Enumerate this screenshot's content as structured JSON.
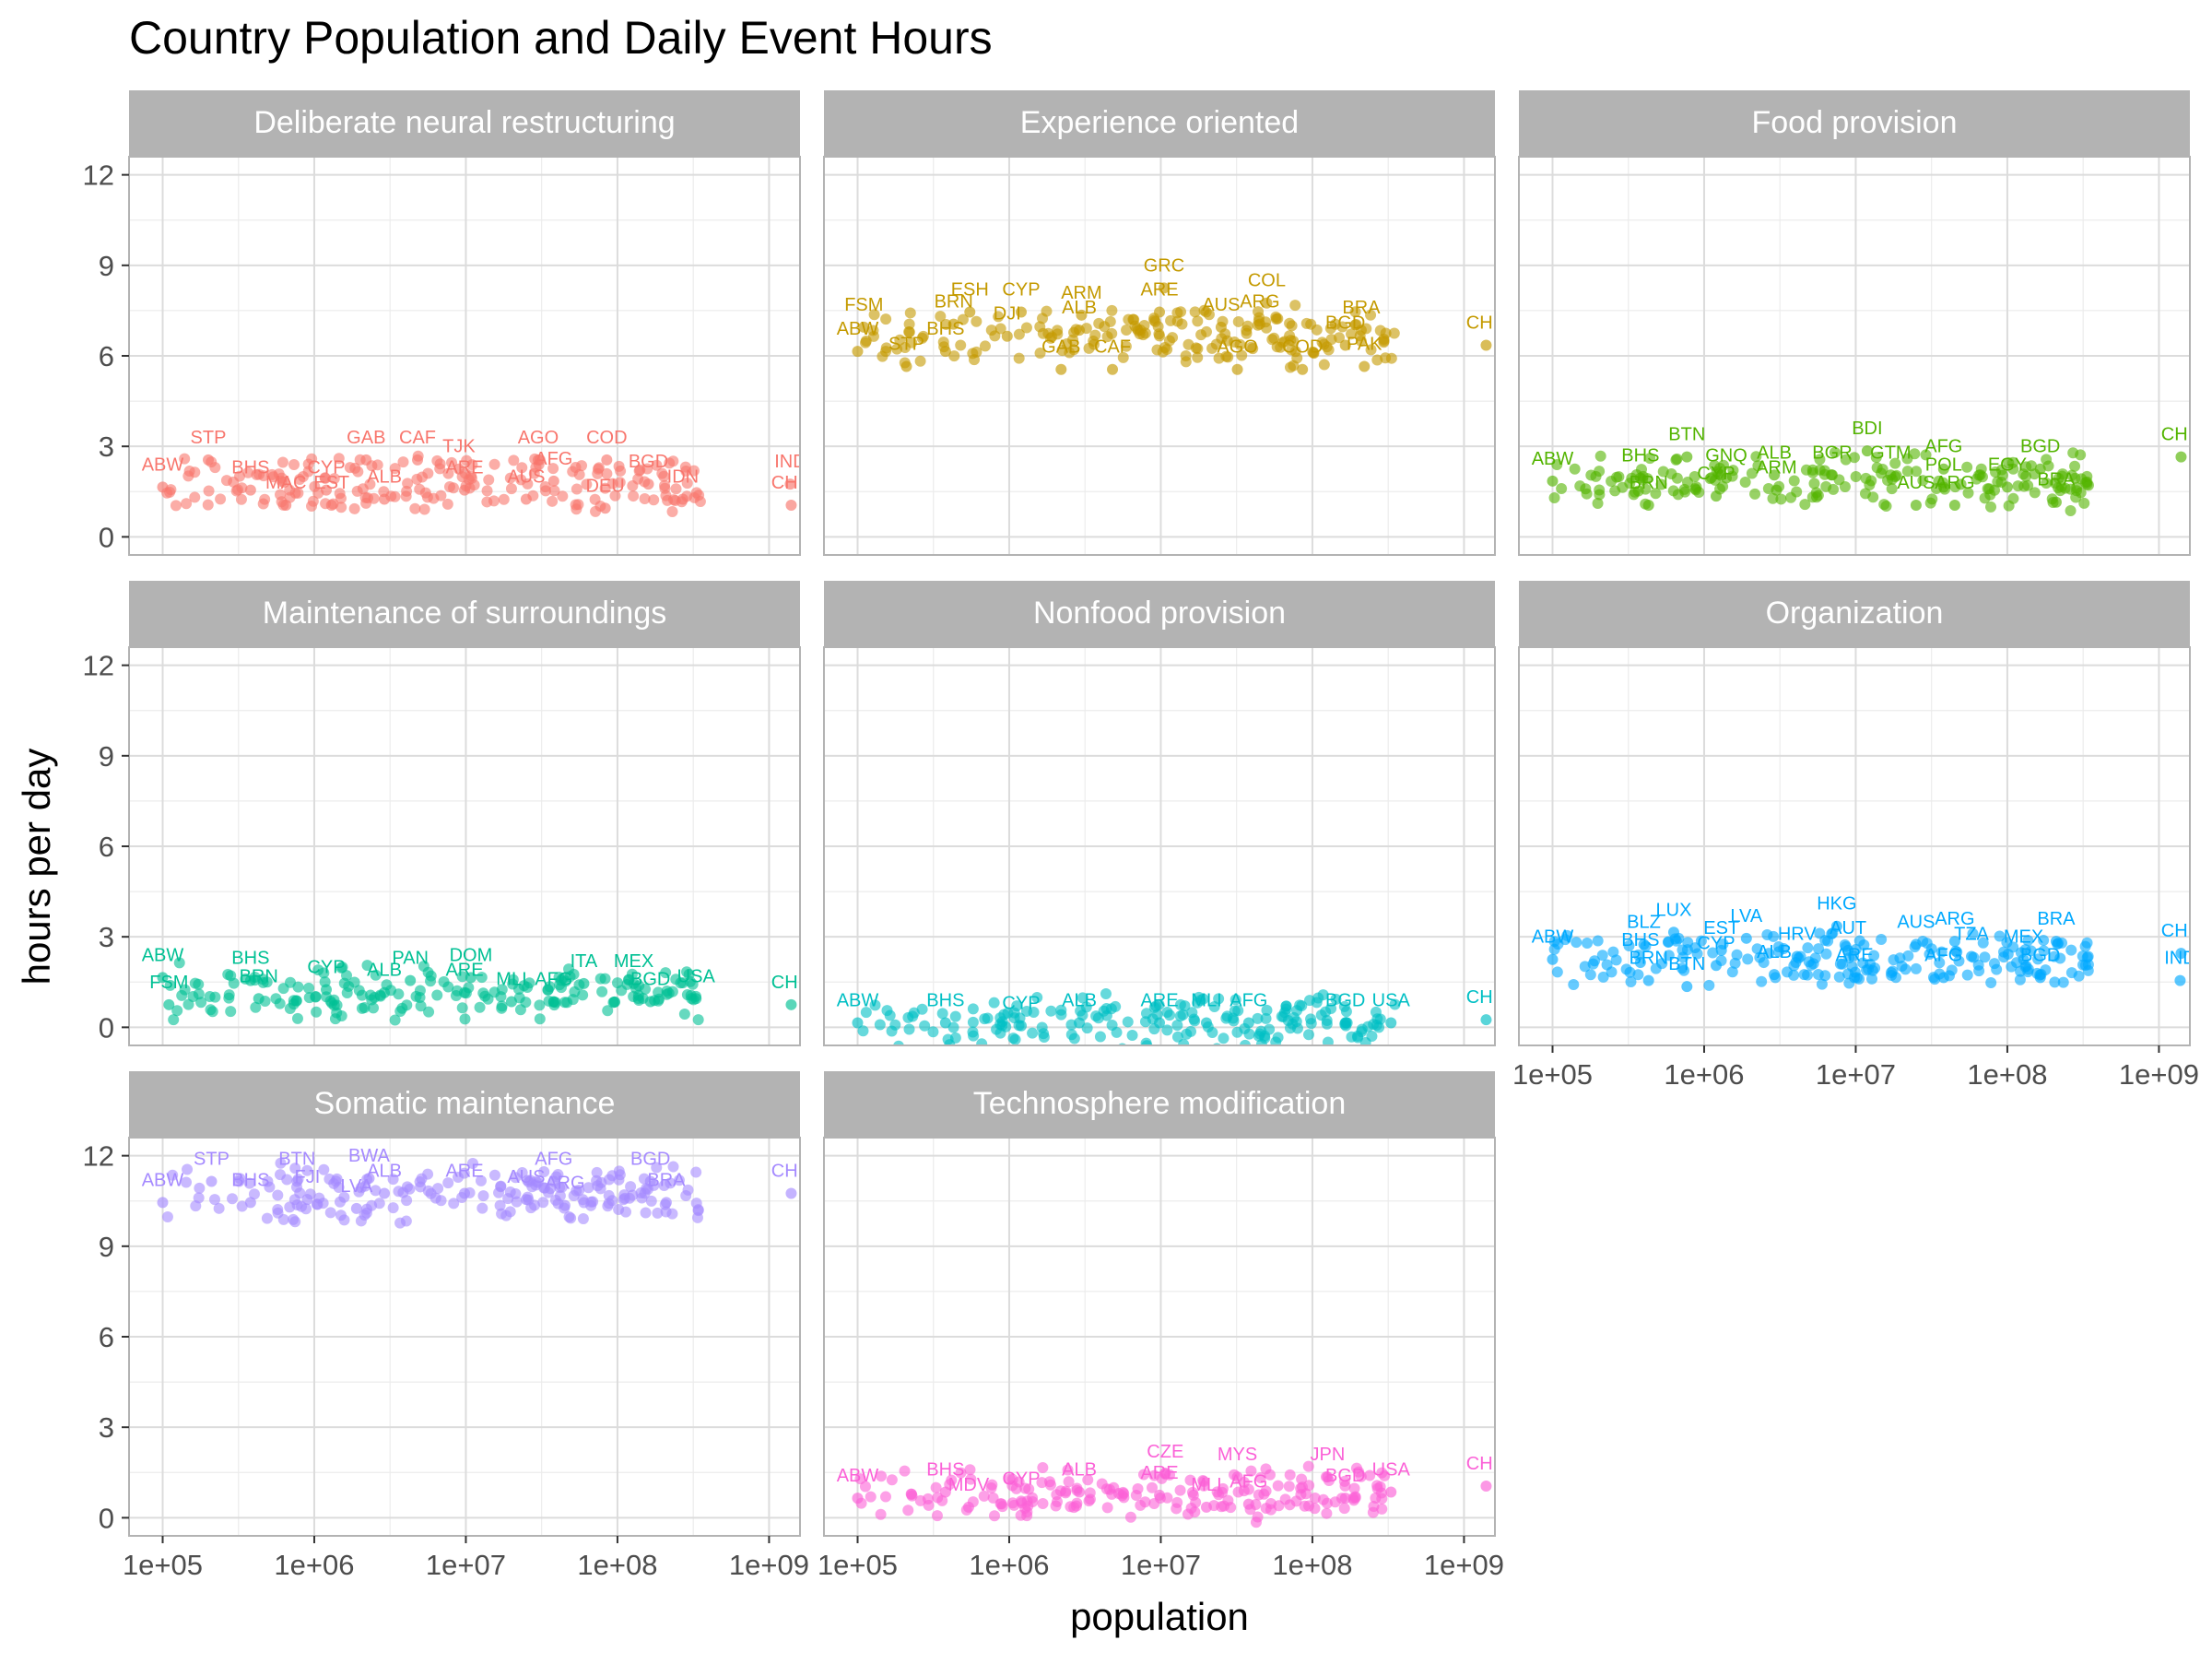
{
  "chart_data": {
    "type": "scatter",
    "title": "Country Population and Daily Event Hours",
    "xlabel": "population",
    "ylabel": "hours per day",
    "x_scale": "log10",
    "xlim": [
      60000,
      1600000000
    ],
    "x_ticks": [
      "1e+05",
      "1e+06",
      "1e+07",
      "1e+08",
      "1e+09"
    ],
    "ylim": [
      -0.6,
      12.6
    ],
    "y_ticks": [
      "0",
      "3",
      "6",
      "9",
      "12"
    ],
    "grid": true,
    "legend": "none",
    "panels": [
      {
        "name": "Deliberate neural restructuring",
        "color": "#F8766D",
        "labels": [
          {
            "text": "ABW",
            "x": 100000,
            "y": 2.2
          },
          {
            "text": "STP",
            "x": 200000,
            "y": 3.1
          },
          {
            "text": "BHS",
            "x": 380000,
            "y": 2.1
          },
          {
            "text": "CYP",
            "x": 1200000,
            "y": 2.1
          },
          {
            "text": "MAC",
            "x": 650000,
            "y": 1.6
          },
          {
            "text": "EST",
            "x": 1300000,
            "y": 1.6
          },
          {
            "text": "GAB",
            "x": 2200000,
            "y": 3.1
          },
          {
            "text": "CAF",
            "x": 4800000,
            "y": 3.1
          },
          {
            "text": "ALB",
            "x": 2900000,
            "y": 1.8
          },
          {
            "text": "TJK",
            "x": 9000000,
            "y": 2.8
          },
          {
            "text": "ARE",
            "x": 9800000,
            "y": 2.1
          },
          {
            "text": "AGO",
            "x": 30000000,
            "y": 3.1
          },
          {
            "text": "COD",
            "x": 85000000,
            "y": 3.1
          },
          {
            "text": "AFG",
            "x": 38000000,
            "y": 2.4
          },
          {
            "text": "AUS",
            "x": 25000000,
            "y": 1.8
          },
          {
            "text": "BGD",
            "x": 160000000,
            "y": 2.3
          },
          {
            "text": "IDN",
            "x": 270000000,
            "y": 1.8
          },
          {
            "text": "DEU",
            "x": 83000000,
            "y": 1.5
          },
          {
            "text": "IND",
            "x": 1380000000,
            "y": 2.3
          },
          {
            "text": "CHN",
            "x": 1400000000,
            "y": 1.6
          }
        ]
      },
      {
        "name": "Experience oriented",
        "color": "#C49A00",
        "labels": [
          {
            "text": "FSM",
            "x": 110000,
            "y": 7.5
          },
          {
            "text": "ABW",
            "x": 100000,
            "y": 6.7
          },
          {
            "text": "ESH",
            "x": 550000,
            "y": 8.0
          },
          {
            "text": "CYP",
            "x": 1200000,
            "y": 8.0
          },
          {
            "text": "BRN",
            "x": 430000,
            "y": 7.6
          },
          {
            "text": "BHS",
            "x": 380000,
            "y": 6.7
          },
          {
            "text": "STP",
            "x": 210000,
            "y": 6.2
          },
          {
            "text": "DJI",
            "x": 970000,
            "y": 7.2
          },
          {
            "text": "ARM",
            "x": 3000000,
            "y": 7.9
          },
          {
            "text": "ALB",
            "x": 2900000,
            "y": 7.4
          },
          {
            "text": "GRC",
            "x": 10500000,
            "y": 8.8
          },
          {
            "text": "ARE",
            "x": 9800000,
            "y": 8.0
          },
          {
            "text": "COL",
            "x": 50000000,
            "y": 8.3
          },
          {
            "text": "AUS",
            "x": 25000000,
            "y": 7.5
          },
          {
            "text": "ARG",
            "x": 45000000,
            "y": 7.6
          },
          {
            "text": "BRA",
            "x": 210000000,
            "y": 7.4
          },
          {
            "text": "BGD",
            "x": 165000000,
            "y": 6.9
          },
          {
            "text": "AGO",
            "x": 32000000,
            "y": 6.1
          },
          {
            "text": "COD",
            "x": 86000000,
            "y": 6.1
          },
          {
            "text": "PAK",
            "x": 220000000,
            "y": 6.2
          },
          {
            "text": "GAB",
            "x": 2200000,
            "y": 6.1
          },
          {
            "text": "CAF",
            "x": 4800000,
            "y": 6.1
          },
          {
            "text": "CHN",
            "x": 1400000000,
            "y": 6.9
          }
        ]
      },
      {
        "name": "Food provision",
        "color": "#53B400",
        "labels": [
          {
            "text": "ABW",
            "x": 100000,
            "y": 2.4
          },
          {
            "text": "BHS",
            "x": 380000,
            "y": 2.5
          },
          {
            "text": "BTN",
            "x": 770000,
            "y": 3.2
          },
          {
            "text": "GNQ",
            "x": 1400000,
            "y": 2.5
          },
          {
            "text": "BRN",
            "x": 430000,
            "y": 1.6
          },
          {
            "text": "CYP",
            "x": 1200000,
            "y": 1.9
          },
          {
            "text": "ALB",
            "x": 2900000,
            "y": 2.6
          },
          {
            "text": "ARM",
            "x": 3000000,
            "y": 2.1
          },
          {
            "text": "BDI",
            "x": 11900000,
            "y": 3.4
          },
          {
            "text": "BGR",
            "x": 7000000,
            "y": 2.6
          },
          {
            "text": "GTM",
            "x": 17000000,
            "y": 2.6
          },
          {
            "text": "AFG",
            "x": 38000000,
            "y": 2.8
          },
          {
            "text": "POL",
            "x": 38000000,
            "y": 2.2
          },
          {
            "text": "AUS",
            "x": 25000000,
            "y": 1.6
          },
          {
            "text": "ARG",
            "x": 45000000,
            "y": 1.6
          },
          {
            "text": "EGY",
            "x": 100000000,
            "y": 2.2
          },
          {
            "text": "BGD",
            "x": 165000000,
            "y": 2.8
          },
          {
            "text": "BRA",
            "x": 210000000,
            "y": 1.7
          },
          {
            "text": "CHN",
            "x": 1400000000,
            "y": 3.2
          }
        ]
      },
      {
        "name": "Maintenance of surroundings",
        "color": "#00C094",
        "labels": [
          {
            "text": "ABW",
            "x": 100000,
            "y": 2.2
          },
          {
            "text": "FSM",
            "x": 110000,
            "y": 1.3
          },
          {
            "text": "BHS",
            "x": 380000,
            "y": 2.1
          },
          {
            "text": "BRN",
            "x": 430000,
            "y": 1.5
          },
          {
            "text": "CYP",
            "x": 1200000,
            "y": 1.8
          },
          {
            "text": "ALB",
            "x": 2900000,
            "y": 1.7
          },
          {
            "text": "PAN",
            "x": 4300000,
            "y": 2.1
          },
          {
            "text": "DOM",
            "x": 10800000,
            "y": 2.2
          },
          {
            "text": "ARE",
            "x": 9800000,
            "y": 1.7
          },
          {
            "text": "MLI",
            "x": 20000000,
            "y": 1.4
          },
          {
            "text": "AFG",
            "x": 38000000,
            "y": 1.4
          },
          {
            "text": "ITA",
            "x": 60000000,
            "y": 2.0
          },
          {
            "text": "MEX",
            "x": 128000000,
            "y": 2.0
          },
          {
            "text": "BGD",
            "x": 165000000,
            "y": 1.4
          },
          {
            "text": "USA",
            "x": 330000000,
            "y": 1.5
          },
          {
            "text": "CHN",
            "x": 1400000000,
            "y": 1.3
          }
        ]
      },
      {
        "name": "Nonfood provision",
        "color": "#00B6EB",
        "alt_color": "#00BFC4",
        "labels": [
          {
            "text": "ABW",
            "x": 100000,
            "y": 0.7
          },
          {
            "text": "BHS",
            "x": 380000,
            "y": 0.7
          },
          {
            "text": "CYP",
            "x": 1200000,
            "y": 0.6
          },
          {
            "text": "ALB",
            "x": 2900000,
            "y": 0.7
          },
          {
            "text": "ARE",
            "x": 9800000,
            "y": 0.7
          },
          {
            "text": "MLI",
            "x": 20000000,
            "y": 0.7
          },
          {
            "text": "AFG",
            "x": 38000000,
            "y": 0.7
          },
          {
            "text": "BGD",
            "x": 165000000,
            "y": 0.7
          },
          {
            "text": "USA",
            "x": 330000000,
            "y": 0.7
          },
          {
            "text": "CHN",
            "x": 1400000000,
            "y": 0.8
          }
        ]
      },
      {
        "name": "Organization",
        "color": "#00A9FF",
        "labels": [
          {
            "text": "ABW",
            "x": 100000,
            "y": 2.8
          },
          {
            "text": "LUX",
            "x": 630000,
            "y": 3.7
          },
          {
            "text": "BLZ",
            "x": 400000,
            "y": 3.3
          },
          {
            "text": "BHS",
            "x": 380000,
            "y": 2.7
          },
          {
            "text": "BRN",
            "x": 430000,
            "y": 2.1
          },
          {
            "text": "BTN",
            "x": 770000,
            "y": 1.9
          },
          {
            "text": "CYP",
            "x": 1200000,
            "y": 2.6
          },
          {
            "text": "EST",
            "x": 1300000,
            "y": 3.1
          },
          {
            "text": "LVA",
            "x": 1900000,
            "y": 3.5
          },
          {
            "text": "ALB",
            "x": 2900000,
            "y": 2.3
          },
          {
            "text": "HRV",
            "x": 4100000,
            "y": 2.9
          },
          {
            "text": "HKG",
            "x": 7500000,
            "y": 3.9
          },
          {
            "text": "AUT",
            "x": 8900000,
            "y": 3.1
          },
          {
            "text": "ARE",
            "x": 9800000,
            "y": 2.2
          },
          {
            "text": "AUS",
            "x": 25000000,
            "y": 3.3
          },
          {
            "text": "ARG",
            "x": 45000000,
            "y": 3.4
          },
          {
            "text": "TZA",
            "x": 58000000,
            "y": 2.9
          },
          {
            "text": "AFG",
            "x": 38000000,
            "y": 2.2
          },
          {
            "text": "MEX",
            "x": 128000000,
            "y": 2.8
          },
          {
            "text": "BGD",
            "x": 165000000,
            "y": 2.2
          },
          {
            "text": "BRA",
            "x": 210000000,
            "y": 3.4
          },
          {
            "text": "CHN",
            "x": 1400000000,
            "y": 3.0
          },
          {
            "text": "IND",
            "x": 1380000000,
            "y": 2.1
          }
        ]
      },
      {
        "name": "Somatic maintenance",
        "color": "#A58AFF",
        "labels": [
          {
            "text": "ABW",
            "x": 100000,
            "y": 11.0
          },
          {
            "text": "STP",
            "x": 210000,
            "y": 11.7
          },
          {
            "text": "BHS",
            "x": 380000,
            "y": 11.0
          },
          {
            "text": "FJI",
            "x": 900000,
            "y": 11.1
          },
          {
            "text": "BTN",
            "x": 770000,
            "y": 11.7
          },
          {
            "text": "BWA",
            "x": 2300000,
            "y": 11.8
          },
          {
            "text": "ALB",
            "x": 2900000,
            "y": 11.3
          },
          {
            "text": "LVA",
            "x": 1900000,
            "y": 10.8
          },
          {
            "text": "ARE",
            "x": 9800000,
            "y": 11.3
          },
          {
            "text": "AUS",
            "x": 25000000,
            "y": 11.1
          },
          {
            "text": "AFG",
            "x": 38000000,
            "y": 11.7
          },
          {
            "text": "ARG",
            "x": 45000000,
            "y": 10.9
          },
          {
            "text": "BGD",
            "x": 165000000,
            "y": 11.7
          },
          {
            "text": "BRA",
            "x": 210000000,
            "y": 11.0
          },
          {
            "text": "CHN",
            "x": 1400000000,
            "y": 11.3
          }
        ]
      },
      {
        "name": "Technosphere modification",
        "color": "#FB61D7",
        "labels": [
          {
            "text": "ABW",
            "x": 100000,
            "y": 1.2
          },
          {
            "text": "BHS",
            "x": 380000,
            "y": 1.4
          },
          {
            "text": "MDV",
            "x": 540000,
            "y": 0.9
          },
          {
            "text": "CYP",
            "x": 1200000,
            "y": 1.1
          },
          {
            "text": "ALB",
            "x": 2900000,
            "y": 1.4
          },
          {
            "text": "ARE",
            "x": 9800000,
            "y": 1.3
          },
          {
            "text": "CZE",
            "x": 10700000,
            "y": 2.0
          },
          {
            "text": "MYS",
            "x": 32000000,
            "y": 1.9
          },
          {
            "text": "MLI",
            "x": 20000000,
            "y": 0.9
          },
          {
            "text": "AFG",
            "x": 38000000,
            "y": 1.0
          },
          {
            "text": "JPN",
            "x": 126000000,
            "y": 1.9
          },
          {
            "text": "BGD",
            "x": 165000000,
            "y": 1.2
          },
          {
            "text": "USA",
            "x": 330000000,
            "y": 1.4
          },
          {
            "text": "CHN",
            "x": 1400000000,
            "y": 1.6
          }
        ]
      }
    ]
  }
}
